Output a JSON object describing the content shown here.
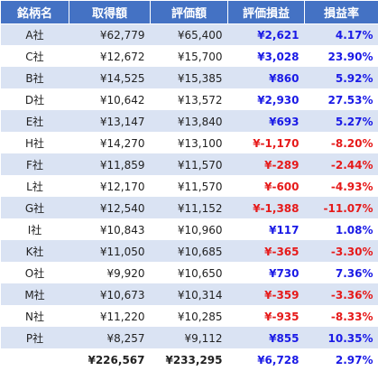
{
  "headers": [
    "銘柄名",
    "取得額",
    "評価額",
    "評価損益",
    "損益率"
  ],
  "rows": [
    {
      "name": "A社",
      "cost": "¥62,779",
      "value": "¥65,400",
      "pl": "¥2,621",
      "rate": "4.17%",
      "sign": "pos"
    },
    {
      "name": "C社",
      "cost": "¥12,672",
      "value": "¥15,700",
      "pl": "¥3,028",
      "rate": "23.90%",
      "sign": "pos"
    },
    {
      "name": "B社",
      "cost": "¥14,525",
      "value": "¥15,385",
      "pl": "¥860",
      "rate": "5.92%",
      "sign": "pos"
    },
    {
      "name": "D社",
      "cost": "¥10,642",
      "value": "¥13,572",
      "pl": "¥2,930",
      "rate": "27.53%",
      "sign": "pos"
    },
    {
      "name": "E社",
      "cost": "¥13,147",
      "value": "¥13,840",
      "pl": "¥693",
      "rate": "5.27%",
      "sign": "pos"
    },
    {
      "name": "H社",
      "cost": "¥14,270",
      "value": "¥13,100",
      "pl": "¥-1,170",
      "rate": "-8.20%",
      "sign": "neg"
    },
    {
      "name": "F社",
      "cost": "¥11,859",
      "value": "¥11,570",
      "pl": "¥-289",
      "rate": "-2.44%",
      "sign": "neg"
    },
    {
      "name": "L社",
      "cost": "¥12,170",
      "value": "¥11,570",
      "pl": "¥-600",
      "rate": "-4.93%",
      "sign": "neg"
    },
    {
      "name": "G社",
      "cost": "¥12,540",
      "value": "¥11,152",
      "pl": "¥-1,388",
      "rate": "-11.07%",
      "sign": "neg"
    },
    {
      "name": "I社",
      "cost": "¥10,843",
      "value": "¥10,960",
      "pl": "¥117",
      "rate": "1.08%",
      "sign": "pos"
    },
    {
      "name": "K社",
      "cost": "¥11,050",
      "value": "¥10,685",
      "pl": "¥-365",
      "rate": "-3.30%",
      "sign": "neg"
    },
    {
      "name": "O社",
      "cost": "¥9,920",
      "value": "¥10,650",
      "pl": "¥730",
      "rate": "7.36%",
      "sign": "pos"
    },
    {
      "name": "M社",
      "cost": "¥10,673",
      "value": "¥10,314",
      "pl": "¥-359",
      "rate": "-3.36%",
      "sign": "neg"
    },
    {
      "name": "N社",
      "cost": "¥11,220",
      "value": "¥10,285",
      "pl": "¥-935",
      "rate": "-8.33%",
      "sign": "neg"
    },
    {
      "name": "P社",
      "cost": "¥8,257",
      "value": "¥9,112",
      "pl": "¥855",
      "rate": "10.35%",
      "sign": "pos"
    }
  ],
  "total": {
    "name": "",
    "cost": "¥226,567",
    "value": "¥233,295",
    "pl": "¥6,728",
    "rate": "2.97%"
  },
  "colors": {
    "header_bg": "#4472c4",
    "band": "#dae3f3",
    "positive": "#1a1ae6",
    "negative": "#e61a1a"
  }
}
